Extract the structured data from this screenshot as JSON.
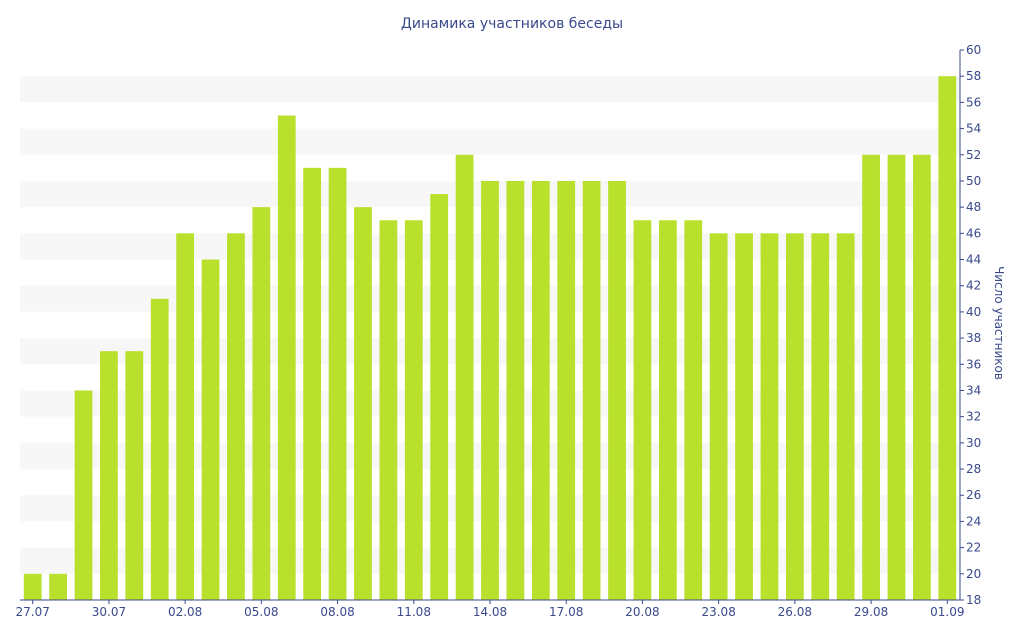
{
  "chart_data": {
    "type": "bar",
    "title": "Динамика участников беседы",
    "xlabel": "",
    "ylabel": "Число участников",
    "ylim": [
      18,
      60
    ],
    "y_ticks": [
      18,
      20,
      22,
      24,
      26,
      28,
      30,
      32,
      34,
      36,
      38,
      40,
      42,
      44,
      46,
      48,
      50,
      52,
      54,
      56,
      58,
      60
    ],
    "y_axis_side": "right",
    "grid": "alternating horizontal bands",
    "categories": [
      "27.07",
      "28.07",
      "29.07",
      "30.07",
      "31.07",
      "01.08",
      "02.08",
      "03.08",
      "04.08",
      "05.08",
      "06.08",
      "07.08",
      "08.08",
      "09.08",
      "10.08",
      "11.08",
      "12.08",
      "13.08",
      "14.08",
      "15.08",
      "16.08",
      "17.08",
      "18.08",
      "19.08",
      "20.08",
      "21.08",
      "22.08",
      "23.08",
      "24.08",
      "25.08",
      "26.08",
      "27.08",
      "28.08",
      "29.08",
      "30.08",
      "31.08",
      "01.09"
    ],
    "x_tick_labels": [
      "27.07",
      "30.07",
      "02.08",
      "05.08",
      "08.08",
      "11.08",
      "14.08",
      "17.08",
      "20.08",
      "23.08",
      "26.08",
      "29.08",
      "01.09"
    ],
    "values": [
      20,
      20,
      34,
      37,
      37,
      41,
      46,
      44,
      46,
      48,
      55,
      51,
      51,
      48,
      47,
      47,
      49,
      52,
      50,
      50,
      50,
      50,
      50,
      50,
      47,
      47,
      47,
      46,
      46,
      46,
      46,
      46,
      46,
      52,
      52,
      52,
      58
    ],
    "colors": {
      "bar": "#b8e02d",
      "band": "#f7f7f7",
      "axis": "#3a4a8c",
      "text": "#3a4a8c"
    }
  }
}
